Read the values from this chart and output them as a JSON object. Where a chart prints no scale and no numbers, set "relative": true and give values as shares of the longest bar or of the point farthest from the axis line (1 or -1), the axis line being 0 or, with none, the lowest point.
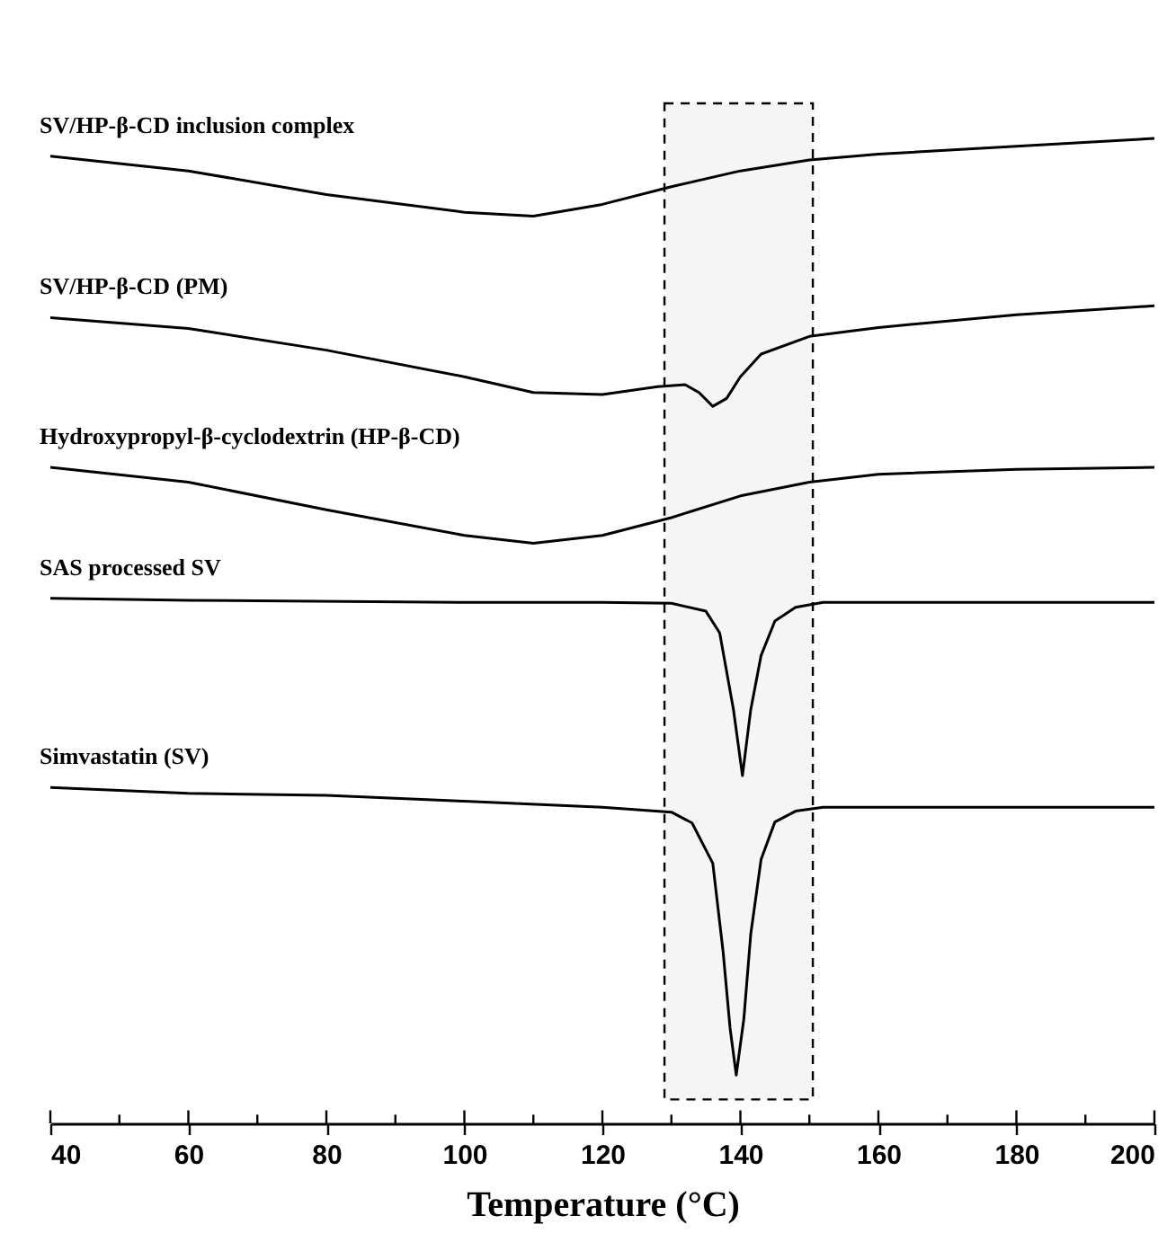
{
  "chart_data": {
    "type": "line",
    "relative": true,
    "xlabel": "Temperature (°C)",
    "xlim": [
      40,
      200
    ],
    "xticks": [
      40,
      {
        "value": 50,
        "label": null
      },
      60,
      {
        "value": 70,
        "label": null
      },
      80,
      {
        "value": 90,
        "label": null
      },
      100,
      {
        "value": 110,
        "label": null
      },
      120,
      {
        "value": 130,
        "label": null
      },
      140,
      {
        "value": 150,
        "label": null
      },
      160,
      {
        "value": 170,
        "label": null
      },
      180,
      {
        "value": 190,
        "label": null
      },
      200
    ],
    "tick_labels": "x",
    "bands": [
      {
        "axis": "x",
        "from": 129,
        "to": 150.5
      }
    ],
    "series": [
      {
        "name": "SV/HP-β-CD inclusion complex",
        "color": "#000000",
        "x": [
          40,
          60,
          80,
          100,
          110,
          120,
          130,
          140,
          150,
          160,
          180,
          200
        ],
        "values": [
          0.982,
          0.967,
          0.943,
          0.925,
          0.921,
          0.933,
          0.951,
          0.967,
          0.978,
          0.984,
          0.992,
          1.0
        ]
      },
      {
        "name": "SV/HP-β-CD (PM)",
        "color": "#000000",
        "x": [
          40,
          60,
          80,
          100,
          110,
          120,
          128,
          132,
          134,
          136,
          138,
          140,
          143,
          150,
          160,
          180,
          200
        ],
        "values": [
          0.818,
          0.807,
          0.785,
          0.758,
          0.742,
          0.74,
          0.748,
          0.75,
          0.742,
          0.728,
          0.736,
          0.758,
          0.781,
          0.799,
          0.808,
          0.821,
          0.83
        ]
      },
      {
        "name": "Hydroxypropyl-β-cyclodextrin (HP-β-CD)",
        "color": "#000000",
        "x": [
          40,
          60,
          80,
          100,
          110,
          120,
          130,
          140,
          150,
          160,
          180,
          200
        ],
        "values": [
          0.666,
          0.651,
          0.623,
          0.597,
          0.589,
          0.597,
          0.615,
          0.637,
          0.651,
          0.659,
          0.664,
          0.666
        ]
      },
      {
        "name": "SAS processed SV",
        "color": "#000000",
        "x": [
          40,
          60,
          100,
          120,
          130,
          135,
          137,
          139,
          140.3,
          141.5,
          143,
          145,
          148,
          152,
          200
        ],
        "values": [
          0.533,
          0.531,
          0.529,
          0.529,
          0.528,
          0.52,
          0.498,
          0.42,
          0.353,
          0.42,
          0.475,
          0.51,
          0.524,
          0.529,
          0.529
        ]
      },
      {
        "name": "Simvastatin (SV)",
        "color": "#000000",
        "x": [
          40,
          60,
          80,
          100,
          120,
          130,
          133,
          136,
          137.5,
          138.5,
          139.4,
          140.5,
          141.5,
          143,
          145,
          148,
          152,
          200
        ],
        "values": [
          0.341,
          0.335,
          0.333,
          0.327,
          0.321,
          0.316,
          0.305,
          0.264,
          0.174,
          0.097,
          0.049,
          0.106,
          0.192,
          0.268,
          0.306,
          0.317,
          0.321,
          0.321
        ]
      }
    ]
  }
}
